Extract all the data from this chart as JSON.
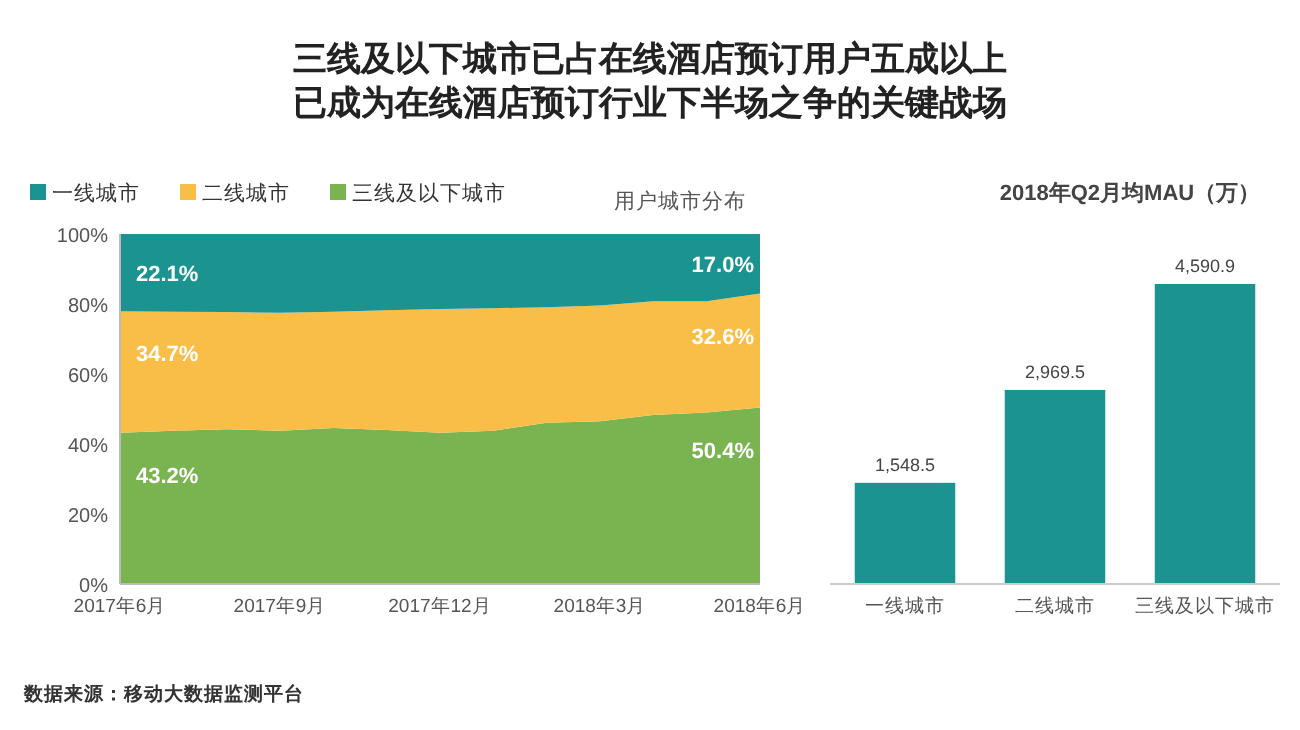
{
  "chart_data": [
    {
      "type": "area",
      "title": "三线及以下城市已占在线酒店预订用户五成以上已成为在线酒店预订行业下半场之争的关键战场",
      "subtitle": "用户城市分布",
      "stacked": true,
      "x": [
        "2017-06",
        "2017-07",
        "2017-08",
        "2017-09",
        "2017-10",
        "2017-11",
        "2017-12",
        "2018-01",
        "2018-02",
        "2018-03",
        "2018-04",
        "2018-05",
        "2018-06"
      ],
      "series": [
        {
          "name": "三线及以下城市",
          "color": "#7ab450",
          "values": [
            43.2,
            43.8,
            44.2,
            43.8,
            44.6,
            44.0,
            43.2,
            43.8,
            46.1,
            46.5,
            48.3,
            49.0,
            50.4
          ],
          "value_labels": [
            "43.2%",
            null,
            null,
            null,
            null,
            null,
            null,
            null,
            null,
            null,
            null,
            null,
            "50.4%"
          ]
        },
        {
          "name": "二线城市",
          "color": "#f9be47",
          "values": [
            34.7,
            34.0,
            33.5,
            33.7,
            33.2,
            34.2,
            35.4,
            35.0,
            33.0,
            33.1,
            32.5,
            31.8,
            32.6
          ],
          "value_labels": [
            "34.7%",
            null,
            null,
            null,
            null,
            null,
            null,
            null,
            null,
            null,
            null,
            null,
            "32.6%"
          ]
        },
        {
          "name": "一线城市",
          "color": "#1a9391",
          "values": [
            22.1,
            22.2,
            22.3,
            22.5,
            22.2,
            21.8,
            21.4,
            21.2,
            20.9,
            20.4,
            19.2,
            19.2,
            17.0
          ],
          "value_labels": [
            "22.1%",
            null,
            null,
            null,
            null,
            null,
            null,
            null,
            null,
            null,
            null,
            null,
            "17.0%"
          ]
        }
      ],
      "xlim": [
        "2017-06",
        "2018-06"
      ],
      "xticks": [
        {
          "value": "2017-06",
          "label": "2017年6月"
        },
        {
          "value": "2017-09",
          "label": "2017年9月"
        },
        {
          "value": "2017-12",
          "label": "2017年12月"
        },
        {
          "value": "2018-03",
          "label": "2018年3月"
        },
        {
          "value": "2018-06",
          "label": "2018年6月"
        }
      ],
      "ylim": [
        0,
        100
      ],
      "yticks": [
        {
          "value": 0,
          "label": "0%"
        },
        {
          "value": 20,
          "label": "20%"
        },
        {
          "value": 40,
          "label": "40%"
        },
        {
          "value": 60,
          "label": "60%"
        },
        {
          "value": 80,
          "label": "80%"
        },
        {
          "value": 100,
          "label": "100%"
        }
      ],
      "legend": "top left",
      "grid": false,
      "annotations": [
        "数据来源：移动大数据监测平台"
      ]
    },
    {
      "type": "bar",
      "title": "2018年Q2月均MAU（万）",
      "categories": [
        "一线城市",
        "二线城市",
        "三线及以下城市"
      ],
      "values": [
        1548.5,
        2969.5,
        4590.9
      ],
      "value_labels": [
        "1,548.5",
        "2,969.5",
        "4,590.9"
      ],
      "color": "#1a9391"
    }
  ]
}
